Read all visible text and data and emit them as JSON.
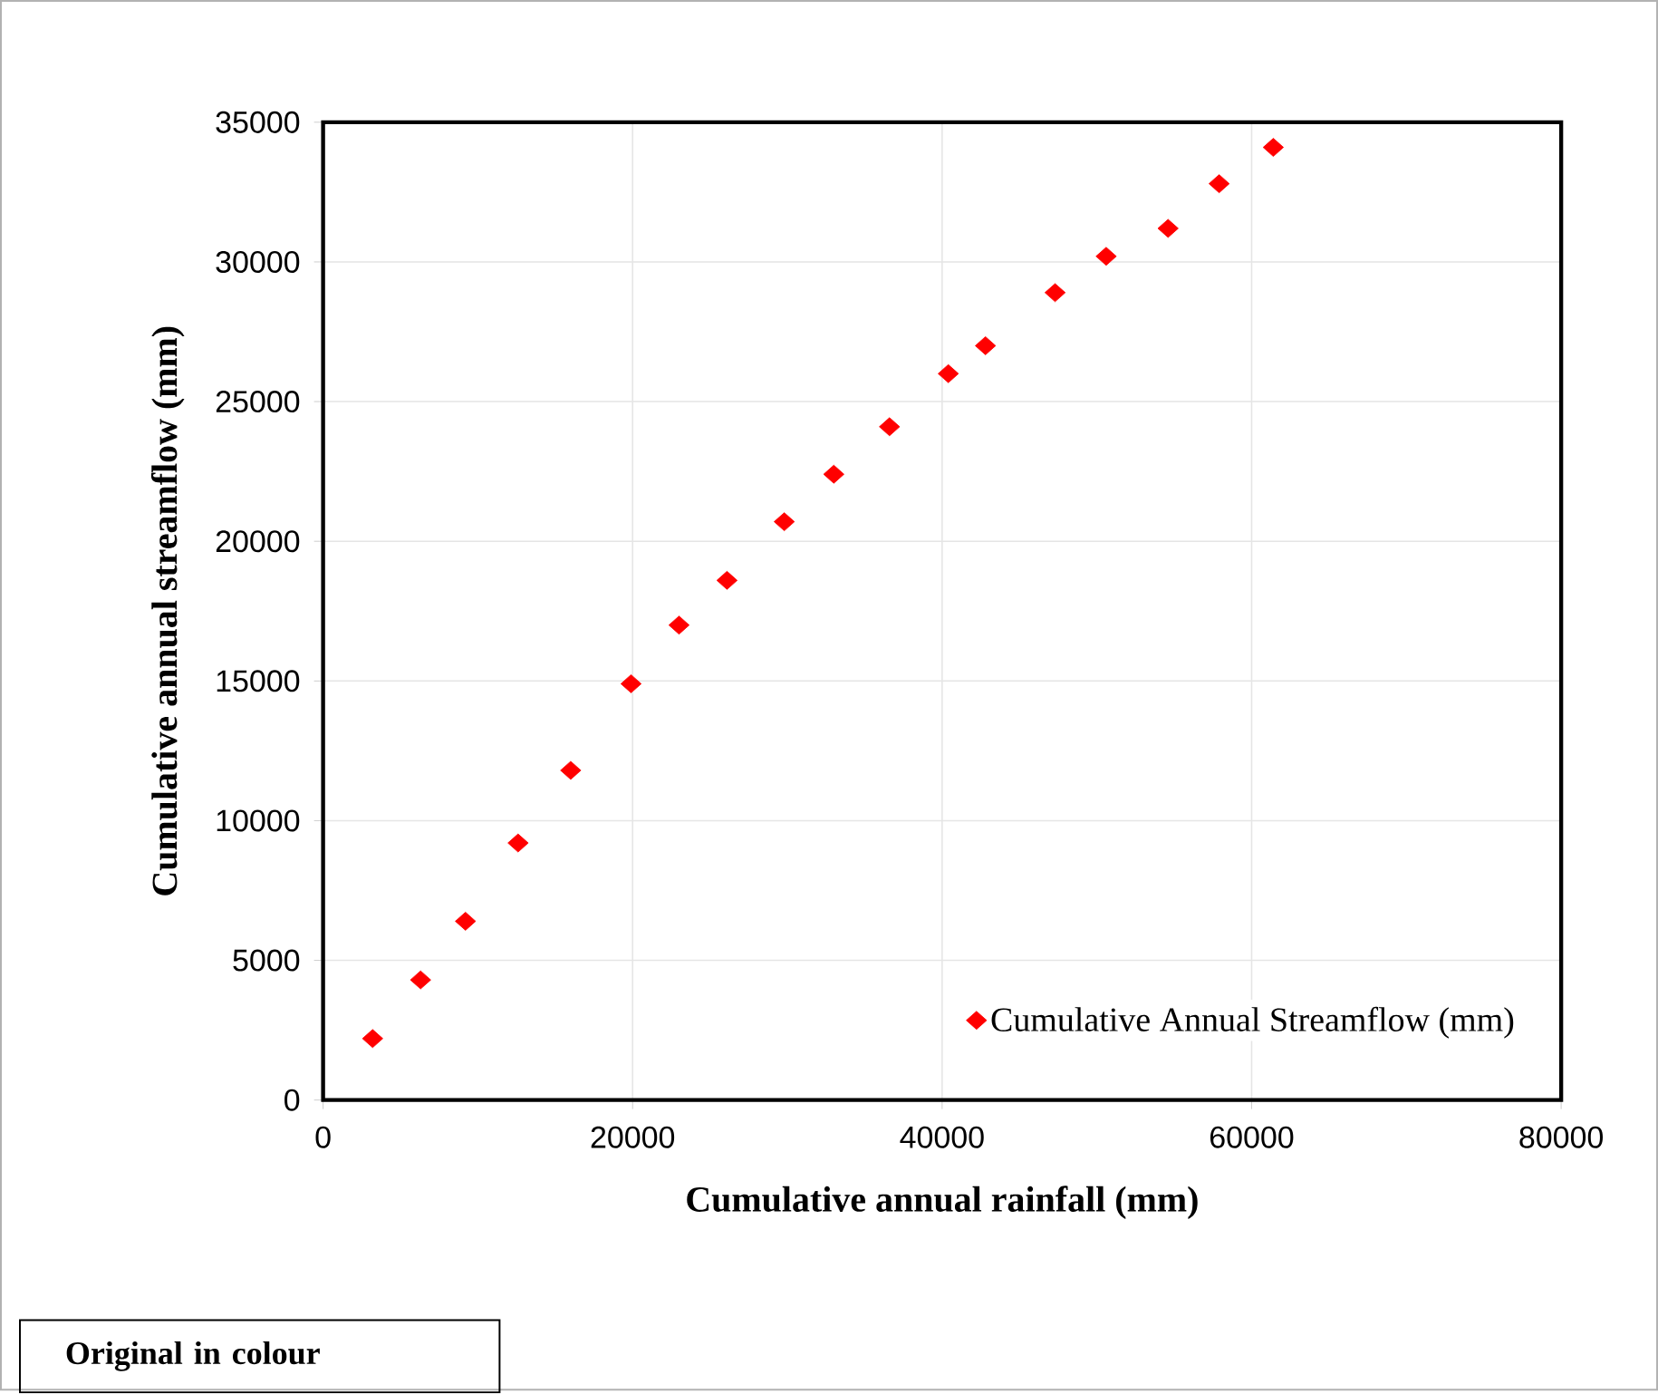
{
  "chart_data": {
    "type": "scatter",
    "xlabel": "Cumulative annual rainfall (mm)",
    "ylabel": "Cumulative  annual streamflow (mm)",
    "annotations": [
      "Original in colour"
    ],
    "series": [
      {
        "name": "Cumulative  Annual Streamflow (mm)",
        "color": "#ff0000",
        "x": [
          3200,
          6300,
          9200,
          12600,
          16000,
          19900,
          23000,
          26100,
          29800,
          33000,
          36600,
          40400,
          42800,
          47300,
          50600,
          54600,
          57900,
          61400
        ],
        "values": [
          2200,
          4300,
          6400,
          9200,
          11800,
          14900,
          17000,
          18600,
          20700,
          22400,
          24100,
          26000,
          27000,
          28900,
          30200,
          31200,
          32800,
          34100
        ]
      }
    ],
    "xlim": [
      0,
      80000
    ],
    "ylim": [
      0,
      35000
    ],
    "xticks": [
      0,
      20000,
      40000,
      60000,
      80000
    ],
    "yticks": [
      0,
      5000,
      10000,
      15000,
      20000,
      25000,
      30000,
      35000
    ],
    "grid": true,
    "legend": "bottom right",
    "marker": "diamond"
  }
}
